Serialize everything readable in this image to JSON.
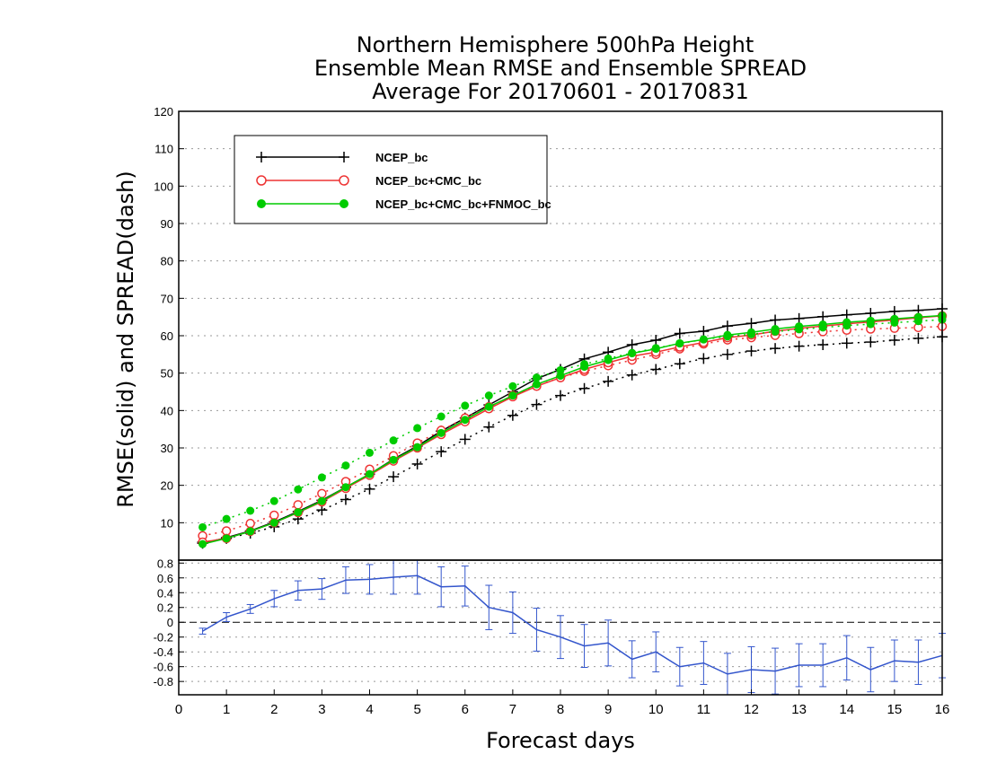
{
  "chart_data": [
    {
      "type": "line",
      "title_lines": [
        "Northern Hemisphere 500hPa Height",
        "Ensemble Mean RMSE and Ensemble SPREAD",
        "Average For 20170601 - 20170831"
      ],
      "ylabel": "RMSE(solid) and SPREAD(dash)",
      "xlim": [
        0,
        16
      ],
      "ylim": [
        0,
        120
      ],
      "yticks": [
        10,
        20,
        30,
        40,
        50,
        60,
        70,
        80,
        90,
        100,
        110,
        120
      ],
      "grid": "horizontal dotted",
      "legend_position": "top-left",
      "x": [
        0.5,
        1,
        1.5,
        2,
        2.5,
        3,
        3.5,
        4,
        4.5,
        5,
        5.5,
        6,
        6.5,
        7,
        7.5,
        8,
        8.5,
        9,
        9.5,
        10,
        10.5,
        11,
        11.5,
        12,
        12.5,
        13,
        13.5,
        14,
        14.5,
        15,
        15.5,
        16
      ],
      "series": [
        {
          "name": "NCEP_bc",
          "color": "#000000",
          "marker": "plus",
          "rmse": [
            4.5,
            6.0,
            7.8,
            10.2,
            13.0,
            16.0,
            19.5,
            23.0,
            27.0,
            30.5,
            34.5,
            38.0,
            41.5,
            45.0,
            48.5,
            51.0,
            53.8,
            55.6,
            57.6,
            58.8,
            60.6,
            61.2,
            62.6,
            63.3,
            64.2,
            64.6,
            65.1,
            65.6,
            66.0,
            66.5,
            66.8,
            67.2
          ],
          "spread": [
            4.8,
            5.8,
            7.2,
            8.9,
            11.0,
            13.4,
            16.2,
            19.0,
            22.3,
            25.7,
            29.0,
            32.3,
            35.6,
            38.7,
            41.6,
            44.0,
            45.9,
            47.8,
            49.5,
            51.0,
            52.5,
            53.9,
            55.0,
            55.9,
            56.6,
            57.2,
            57.6,
            58.0,
            58.3,
            58.8,
            59.3,
            59.7
          ]
        },
        {
          "name": "NCEP_bc+CMC_bc",
          "color": "#ee3333",
          "marker": "open-circle",
          "rmse": [
            4.8,
            5.8,
            7.7,
            10.0,
            12.7,
            15.6,
            19.2,
            22.7,
            26.5,
            30.0,
            33.6,
            37.0,
            40.5,
            43.7,
            46.5,
            48.8,
            51.0,
            52.8,
            54.5,
            55.6,
            57.0,
            58.2,
            59.5,
            60.2,
            61.2,
            62.0,
            62.6,
            63.2,
            63.7,
            64.2,
            64.8,
            65.3
          ],
          "spread": [
            6.5,
            7.8,
            9.8,
            12.0,
            14.8,
            17.8,
            21.0,
            24.3,
            27.9,
            31.3,
            34.7,
            38.0,
            41.0,
            44.0,
            46.6,
            48.8,
            50.5,
            52.0,
            53.5,
            55.0,
            56.5,
            57.8,
            58.9,
            59.5,
            60.1,
            60.6,
            61.1,
            61.5,
            61.8,
            62.0,
            62.2,
            62.5
          ]
        },
        {
          "name": "NCEP_bc+CMC_bc+FNMOC_bc",
          "color": "#00cc00",
          "marker": "filled-circle",
          "rmse": [
            4.3,
            5.8,
            7.7,
            10.0,
            12.8,
            15.8,
            19.5,
            23.0,
            26.8,
            30.2,
            34.0,
            37.5,
            41.0,
            44.0,
            47.0,
            49.3,
            51.7,
            53.5,
            55.3,
            56.5,
            58.0,
            59.0,
            60.2,
            60.9,
            61.8,
            62.5,
            63.0,
            63.6,
            64.0,
            64.5,
            65.0,
            65.4
          ],
          "spread": [
            8.8,
            11.0,
            13.2,
            15.8,
            18.9,
            22.1,
            25.3,
            28.7,
            32.0,
            35.3,
            38.4,
            41.3,
            44.0,
            46.5,
            48.8,
            50.8,
            52.4,
            53.9,
            55.4,
            56.7,
            57.9,
            59.0,
            59.8,
            60.4,
            61.1,
            61.7,
            62.2,
            62.7,
            63.1,
            63.5,
            63.9,
            64.3
          ]
        }
      ]
    },
    {
      "type": "line",
      "xlabel": "Forecast days",
      "xlim": [
        0,
        16
      ],
      "ylim": [
        -0.98,
        0.84
      ],
      "yticks": [
        -0.8,
        -0.6,
        -0.4,
        -0.2,
        0,
        0.2,
        0.4,
        0.6,
        0.8
      ],
      "ytick_labels": [
        "-0.8",
        "-0.6",
        "-0.4",
        "-0.2",
        "0",
        "0.2",
        "0.4",
        "0.6",
        "0.8"
      ],
      "xticks": [
        0,
        1,
        2,
        3,
        4,
        5,
        6,
        7,
        8,
        9,
        10,
        11,
        12,
        13,
        14,
        15,
        16
      ],
      "xtick_labels": [
        "0",
        "1",
        "2",
        "3",
        "4",
        "5",
        "6",
        "7",
        "8",
        "9",
        "10",
        "11",
        "12",
        "13",
        "14",
        "15",
        "16"
      ],
      "grid": "horizontal dotted",
      "reference_line": 0,
      "color": "#3355cc",
      "x": [
        0.5,
        1,
        1.5,
        2,
        2.5,
        3,
        3.5,
        4,
        4.5,
        5,
        5.5,
        6,
        6.5,
        7,
        7.5,
        8,
        8.5,
        9,
        9.5,
        10,
        10.5,
        11,
        11.5,
        12,
        12.5,
        13,
        13.5,
        14,
        14.5,
        15,
        15.5,
        16
      ],
      "values": [
        -0.12,
        0.07,
        0.18,
        0.32,
        0.43,
        0.45,
        0.57,
        0.58,
        0.61,
        0.63,
        0.48,
        0.49,
        0.2,
        0.13,
        -0.1,
        -0.2,
        -0.32,
        -0.28,
        -0.5,
        -0.4,
        -0.6,
        -0.55,
        -0.7,
        -0.64,
        -0.66,
        -0.58,
        -0.58,
        -0.48,
        -0.64,
        -0.52,
        -0.54,
        -0.45
      ],
      "error": [
        0.04,
        0.06,
        0.06,
        0.11,
        0.13,
        0.14,
        0.18,
        0.2,
        0.23,
        0.25,
        0.27,
        0.27,
        0.3,
        0.28,
        0.29,
        0.29,
        0.29,
        0.31,
        0.25,
        0.27,
        0.26,
        0.29,
        0.28,
        0.31,
        0.31,
        0.29,
        0.29,
        0.3,
        0.3,
        0.28,
        0.3,
        0.3
      ]
    }
  ]
}
